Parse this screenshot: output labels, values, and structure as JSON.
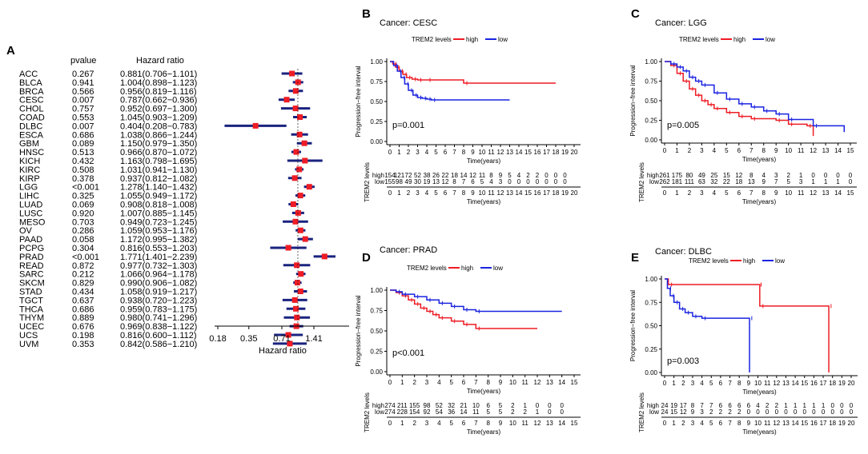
{
  "chart_data": [
    {
      "panel": "A",
      "type": "forest",
      "col_pvalue_label": "pvalue",
      "col_hr_label": "Hazard ratio",
      "xlabel": "Hazard ratio",
      "xticks": [
        0.18,
        0.35,
        0.71,
        1.41
      ],
      "xtick_labels": [
        "0.18",
        "0.35",
        "0.71",
        "1.41"
      ],
      "xlim": [
        0.18,
        2.8
      ],
      "rows": [
        {
          "cancer": "ACC",
          "pvalue": "0.267",
          "hr_text": "0.881(0.706−1.101)",
          "hr": 0.881,
          "lo": 0.706,
          "hi": 1.101
        },
        {
          "cancer": "BLCA",
          "pvalue": "0.941",
          "hr_text": "1.004(0.898−1.123)",
          "hr": 1.004,
          "lo": 0.898,
          "hi": 1.123
        },
        {
          "cancer": "BRCA",
          "pvalue": "0.566",
          "hr_text": "0.956(0.819−1.116)",
          "hr": 0.956,
          "lo": 0.819,
          "hi": 1.116
        },
        {
          "cancer": "CESC",
          "pvalue": "0.007",
          "hr_text": "0.787(0.662−0.936)",
          "hr": 0.787,
          "lo": 0.662,
          "hi": 0.936
        },
        {
          "cancer": "CHOL",
          "pvalue": "0.757",
          "hr_text": "0.952(0.697−1.300)",
          "hr": 0.952,
          "lo": 0.697,
          "hi": 1.3
        },
        {
          "cancer": "COAD",
          "pvalue": "0.553",
          "hr_text": "1.045(0.903−1.209)",
          "hr": 1.045,
          "lo": 0.903,
          "hi": 1.209
        },
        {
          "cancer": "DLBC",
          "pvalue": "0.007",
          "hr_text": "0.404(0.208−0.783)",
          "hr": 0.404,
          "lo": 0.208,
          "hi": 0.783
        },
        {
          "cancer": "ESCA",
          "pvalue": "0.686",
          "hr_text": "1.038(0.866−1.244)",
          "hr": 1.038,
          "lo": 0.866,
          "hi": 1.244
        },
        {
          "cancer": "GBM",
          "pvalue": "0.089",
          "hr_text": "1.150(0.979−1.350)",
          "hr": 1.15,
          "lo": 0.979,
          "hi": 1.35
        },
        {
          "cancer": "HNSC",
          "pvalue": "0.513",
          "hr_text": "0.966(0.870−1.072)",
          "hr": 0.966,
          "lo": 0.87,
          "hi": 1.072
        },
        {
          "cancer": "KICH",
          "pvalue": "0.432",
          "hr_text": "1.163(0.798−1.695)",
          "hr": 1.163,
          "lo": 0.798,
          "hi": 1.695
        },
        {
          "cancer": "KIRC",
          "pvalue": "0.508",
          "hr_text": "1.031(0.941−1.130)",
          "hr": 1.031,
          "lo": 0.941,
          "hi": 1.13
        },
        {
          "cancer": "KIRP",
          "pvalue": "0.378",
          "hr_text": "0.937(0.812−1.082)",
          "hr": 0.937,
          "lo": 0.812,
          "hi": 1.082
        },
        {
          "cancer": "LGG",
          "pvalue": "<0.001",
          "hr_text": "1.278(1.140−1.432)",
          "hr": 1.278,
          "lo": 1.14,
          "hi": 1.432
        },
        {
          "cancer": "LIHC",
          "pvalue": "0.325",
          "hr_text": "1.055(0.949−1.172)",
          "hr": 1.055,
          "lo": 0.949,
          "hi": 1.172
        },
        {
          "cancer": "LUAD",
          "pvalue": "0.069",
          "hr_text": "0.908(0.818−1.008)",
          "hr": 0.908,
          "lo": 0.818,
          "hi": 1.008
        },
        {
          "cancer": "LUSC",
          "pvalue": "0.920",
          "hr_text": "1.007(0.885−1.145)",
          "hr": 1.007,
          "lo": 0.885,
          "hi": 1.145
        },
        {
          "cancer": "MESO",
          "pvalue": "0.703",
          "hr_text": "0.949(0.723−1.245)",
          "hr": 0.949,
          "lo": 0.723,
          "hi": 1.245
        },
        {
          "cancer": "OV",
          "pvalue": "0.286",
          "hr_text": "1.059(0.953−1.176)",
          "hr": 1.059,
          "lo": 0.953,
          "hi": 1.176
        },
        {
          "cancer": "PAAD",
          "pvalue": "0.058",
          "hr_text": "1.172(0.995−1.382)",
          "hr": 1.172,
          "lo": 0.995,
          "hi": 1.382
        },
        {
          "cancer": "PCPG",
          "pvalue": "0.304",
          "hr_text": "0.816(0.553−1.203)",
          "hr": 0.816,
          "lo": 0.553,
          "hi": 1.203
        },
        {
          "cancer": "PRAD",
          "pvalue": "<0.001",
          "hr_text": "1.771(1.401−2.239)",
          "hr": 1.771,
          "lo": 1.401,
          "hi": 2.239
        },
        {
          "cancer": "READ",
          "pvalue": "0.872",
          "hr_text": "0.977(0.732−1.303)",
          "hr": 0.977,
          "lo": 0.732,
          "hi": 1.303
        },
        {
          "cancer": "SARC",
          "pvalue": "0.212",
          "hr_text": "1.066(0.964−1.178)",
          "hr": 1.066,
          "lo": 0.964,
          "hi": 1.178
        },
        {
          "cancer": "SKCM",
          "pvalue": "0.829",
          "hr_text": "0.990(0.906−1.082)",
          "hr": 0.99,
          "lo": 0.906,
          "hi": 1.082
        },
        {
          "cancer": "STAD",
          "pvalue": "0.434",
          "hr_text": "1.058(0.919−1.217)",
          "hr": 1.058,
          "lo": 0.919,
          "hi": 1.217
        },
        {
          "cancer": "TGCT",
          "pvalue": "0.637",
          "hr_text": "0.938(0.720−1.223)",
          "hr": 0.938,
          "lo": 0.72,
          "hi": 1.223
        },
        {
          "cancer": "THCA",
          "pvalue": "0.686",
          "hr_text": "0.959(0.783−1.175)",
          "hr": 0.959,
          "lo": 0.783,
          "hi": 1.175
        },
        {
          "cancer": "THYM",
          "pvalue": "0.889",
          "hr_text": "0.980(0.741−1.296)",
          "hr": 0.98,
          "lo": 0.741,
          "hi": 1.296
        },
        {
          "cancer": "UCEC",
          "pvalue": "0.676",
          "hr_text": "0.969(0.838−1.122)",
          "hr": 0.969,
          "lo": 0.838,
          "hi": 1.122
        },
        {
          "cancer": "UCS",
          "pvalue": "0.198",
          "hr_text": "0.816(0.600−1.112)",
          "hr": 0.816,
          "lo": 0.6,
          "hi": 1.112
        },
        {
          "cancer": "UVM",
          "pvalue": "0.353",
          "hr_text": "0.842(0.586−1.210)",
          "hr": 0.842,
          "lo": 0.586,
          "hi": 1.21
        }
      ],
      "colors": {
        "ci_line": "#1a237e",
        "marker": "#ee1c25"
      }
    },
    {
      "panel": "B",
      "type": "line",
      "title": "Cancer: CESC",
      "ylabel": "Progression−free interval",
      "xlabel": "Time(years)",
      "ylim": [
        0,
        1
      ],
      "yticks": [
        "0.00",
        "0.25",
        "0.50",
        "0.75",
        "1.00"
      ],
      "xmax": 20,
      "legend_title": "TREM2 levels",
      "series": [
        {
          "name": "high",
          "color": "#ee1c25",
          "x": [
            0,
            0.3,
            0.6,
            1.0,
            1.4,
            1.8,
            2.4,
            3.0,
            4.0,
            8.0,
            18.0
          ],
          "y": [
            1.0,
            0.97,
            0.93,
            0.88,
            0.84,
            0.8,
            0.78,
            0.77,
            0.77,
            0.73,
            0.73
          ]
        },
        {
          "name": "low",
          "color": "#1a23e0",
          "x": [
            0,
            0.4,
            0.8,
            1.2,
            1.6,
            2.0,
            2.5,
            3.0,
            3.5,
            4.0,
            4.5,
            13.0
          ],
          "y": [
            1.0,
            0.95,
            0.88,
            0.8,
            0.72,
            0.64,
            0.58,
            0.55,
            0.54,
            0.53,
            0.52,
            0.52
          ]
        }
      ],
      "pvalue": "p=0.001",
      "risk_table": {
        "title": "TREM2 levels",
        "xlabel": "Time(years)",
        "rows": [
          {
            "name": "high",
            "counts": [
              "154",
              "121",
              "72",
              "52",
              "38",
              "26",
              "22",
              "18",
              "14",
              "12",
              "11",
              "8",
              "9",
              "5",
              "4",
              "2",
              "2",
              "0",
              "0",
              "0"
            ]
          },
          {
            "name": "low",
            "counts": [
              "155",
              "98",
              "49",
              "30",
              "19",
              "13",
              "12",
              "8",
              "7",
              "6",
              "5",
              "4",
              "3",
              "0",
              "0",
              "0",
              "0",
              "0",
              "0",
              "0"
            ]
          }
        ]
      }
    },
    {
      "panel": "C",
      "type": "line",
      "title": "Cancer: LGG",
      "ylabel": "Progression−free interval",
      "xlabel": "Time(years)",
      "ylim": [
        0,
        1
      ],
      "yticks": [
        "0.00",
        "0.25",
        "0.50",
        "0.75",
        "1.00"
      ],
      "xmax": 15,
      "legend_title": "TREM2 levels",
      "series": [
        {
          "name": "high",
          "color": "#ee1c25",
          "x": [
            0,
            0.5,
            1,
            1.5,
            2,
            2.5,
            3,
            3.5,
            4,
            5,
            6,
            7,
            9,
            10,
            11.5,
            12
          ],
          "y": [
            1.0,
            0.95,
            0.85,
            0.75,
            0.65,
            0.57,
            0.5,
            0.45,
            0.4,
            0.35,
            0.3,
            0.27,
            0.25,
            0.2,
            0.18,
            0.05
          ]
        },
        {
          "name": "low",
          "color": "#1a23e0",
          "x": [
            0,
            0.5,
            1,
            1.5,
            2,
            2.5,
            3,
            4,
            5,
            6,
            7,
            8,
            9,
            10,
            12,
            14.5
          ],
          "y": [
            1.0,
            0.97,
            0.93,
            0.88,
            0.8,
            0.75,
            0.7,
            0.6,
            0.52,
            0.46,
            0.42,
            0.37,
            0.33,
            0.26,
            0.18,
            0.1
          ]
        }
      ],
      "pvalue": "p=0.005",
      "risk_table": {
        "title": "TREM2 levels",
        "xlabel": "Time(years)",
        "rows": [
          {
            "name": "high",
            "counts": [
              "261",
              "175",
              "80",
              "49",
              "25",
              "15",
              "12",
              "8",
              "4",
              "3",
              "2",
              "1",
              "0",
              "0",
              "0",
              "0"
            ]
          },
          {
            "name": "low",
            "counts": [
              "262",
              "181",
              "111",
              "63",
              "32",
              "22",
              "18",
              "13",
              "9",
              "7",
              "5",
              "3",
              "1",
              "1",
              "1",
              "0"
            ]
          }
        ]
      }
    },
    {
      "panel": "D",
      "type": "line",
      "title": "Cancer: PRAD",
      "ylabel": "Progression−free interval",
      "xlabel": "Time(years)",
      "ylim": [
        0,
        1
      ],
      "yticks": [
        "0.00",
        "0.25",
        "0.50",
        "0.75",
        "1.00"
      ],
      "xmax": 15,
      "legend_title": "TREM2 levels",
      "series": [
        {
          "name": "high",
          "color": "#ee1c25",
          "x": [
            0,
            0.5,
            1,
            1.5,
            2,
            2.5,
            3,
            3.5,
            4,
            5,
            6,
            7,
            12
          ],
          "y": [
            1.0,
            0.97,
            0.93,
            0.88,
            0.83,
            0.78,
            0.74,
            0.7,
            0.66,
            0.62,
            0.58,
            0.53,
            0.53
          ]
        },
        {
          "name": "low",
          "color": "#1a23e0",
          "x": [
            0,
            0.5,
            1,
            2,
            3,
            4,
            5,
            6,
            7,
            14
          ],
          "y": [
            1.0,
            0.98,
            0.95,
            0.92,
            0.88,
            0.84,
            0.8,
            0.76,
            0.74,
            0.74
          ]
        }
      ],
      "pvalue": "p<0.001",
      "risk_table": {
        "title": "TREM2 levels",
        "xlabel": "Time(years)",
        "rows": [
          {
            "name": "high",
            "counts": [
              "274",
              "211",
              "155",
              "98",
              "52",
              "32",
              "21",
              "10",
              "6",
              "5",
              "2",
              "1",
              "0",
              "0",
              "0"
            ]
          },
          {
            "name": "low",
            "counts": [
              "274",
              "228",
              "154",
              "92",
              "54",
              "36",
              "14",
              "11",
              "5",
              "5",
              "2",
              "2",
              "1",
              "0",
              "0"
            ]
          }
        ]
      }
    },
    {
      "panel": "E",
      "type": "line",
      "title": "Cancer: DLBC",
      "ylabel": "Progression−free interval",
      "xlabel": "Time(years)",
      "ylim": [
        0,
        1
      ],
      "yticks": [
        "0.00",
        "0.25",
        "0.50",
        "0.75",
        "1.00"
      ],
      "xmax": 20,
      "legend_title": "TREM2 levels",
      "series": [
        {
          "name": "high",
          "color": "#ee1c25",
          "x": [
            0,
            0.4,
            10,
            10.2,
            17.5,
            17.6
          ],
          "y": [
            1.0,
            0.94,
            0.94,
            0.71,
            0.71,
            0.0
          ]
        },
        {
          "name": "low",
          "color": "#1a23e0",
          "x": [
            0,
            0.3,
            0.6,
            1.0,
            1.6,
            2.2,
            3.0,
            4.0,
            9.0,
            9.1
          ],
          "y": [
            1.0,
            0.9,
            0.82,
            0.75,
            0.68,
            0.64,
            0.6,
            0.58,
            0.58,
            0.0
          ]
        }
      ],
      "pvalue": "p=0.003",
      "risk_table": {
        "title": "TREM2 levels",
        "xlabel": "Time(years)",
        "rows": [
          {
            "name": "high",
            "counts": [
              "24",
              "19",
              "17",
              "8",
              "7",
              "7",
              "6",
              "6",
              "6",
              "6",
              "4",
              "2",
              "2",
              "1",
              "1",
              "1",
              "1",
              "1",
              "0",
              "0",
              "0"
            ]
          },
          {
            "name": "low",
            "counts": [
              "24",
              "15",
              "12",
              "9",
              "3",
              "2",
              "2",
              "2",
              "2",
              "0",
              "0",
              "0",
              "0",
              "0",
              "0",
              "0",
              "0",
              "0",
              "0",
              "0",
              "0"
            ]
          }
        ]
      }
    }
  ]
}
